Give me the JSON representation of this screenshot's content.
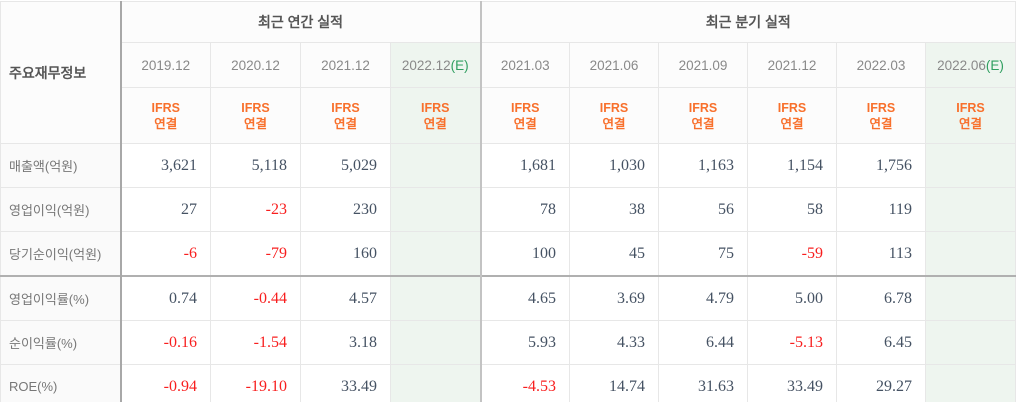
{
  "table": {
    "corner_label": "주요재무정보",
    "groups": [
      {
        "label": "최근 연간 실적",
        "span": 4
      },
      {
        "label": "최근 분기 실적",
        "span": 6
      }
    ],
    "columns": [
      {
        "period": "2019.12",
        "estimate": false,
        "standard_label": "IFRS",
        "scope_label": "연결"
      },
      {
        "period": "2020.12",
        "estimate": false,
        "standard_label": "IFRS",
        "scope_label": "연결"
      },
      {
        "period": "2021.12",
        "estimate": false,
        "standard_label": "IFRS",
        "scope_label": "연결"
      },
      {
        "period": "2022.12",
        "estimate": true,
        "estimate_suffix": "(E)",
        "standard_label": "IFRS",
        "scope_label": "연결"
      },
      {
        "period": "2021.03",
        "estimate": false,
        "standard_label": "IFRS",
        "scope_label": "연결"
      },
      {
        "period": "2021.06",
        "estimate": false,
        "standard_label": "IFRS",
        "scope_label": "연결"
      },
      {
        "period": "2021.09",
        "estimate": false,
        "standard_label": "IFRS",
        "scope_label": "연결"
      },
      {
        "period": "2021.12",
        "estimate": false,
        "standard_label": "IFRS",
        "scope_label": "연결"
      },
      {
        "period": "2022.03",
        "estimate": false,
        "standard_label": "IFRS",
        "scope_label": "연결"
      },
      {
        "period": "2022.06",
        "estimate": true,
        "estimate_suffix": "(E)",
        "standard_label": "IFRS",
        "scope_label": "연결"
      }
    ],
    "rows": [
      {
        "label": "매출액(억원)",
        "section_start": false,
        "values": [
          "3,621",
          "5,118",
          "5,029",
          "",
          "1,681",
          "1,030",
          "1,163",
          "1,154",
          "1,756",
          ""
        ]
      },
      {
        "label": "영업이익(억원)",
        "section_start": false,
        "values": [
          "27",
          "-23",
          "230",
          "",
          "78",
          "38",
          "56",
          "58",
          "119",
          ""
        ]
      },
      {
        "label": "당기순이익(억원)",
        "section_start": false,
        "values": [
          "-6",
          "-79",
          "160",
          "",
          "100",
          "45",
          "75",
          "-59",
          "113",
          ""
        ]
      },
      {
        "label": "영업이익률(%)",
        "section_start": true,
        "values": [
          "0.74",
          "-0.44",
          "4.57",
          "",
          "4.65",
          "3.69",
          "4.79",
          "5.00",
          "6.78",
          ""
        ]
      },
      {
        "label": "순이익률(%)",
        "section_start": false,
        "values": [
          "-0.16",
          "-1.54",
          "3.18",
          "",
          "5.93",
          "4.33",
          "6.44",
          "-5.13",
          "6.45",
          ""
        ]
      },
      {
        "label": "ROE(%)",
        "section_start": false,
        "values": [
          "-0.94",
          "-19.10",
          "33.49",
          "",
          "-4.53",
          "14.74",
          "31.63",
          "33.49",
          "29.27",
          ""
        ]
      }
    ]
  },
  "colors": {
    "accent_orange": "#f8702c",
    "estimate_green_text": "#2f9e5f",
    "estimate_green_bg": "#eef5ef",
    "negative_red": "#f81e1e",
    "number_text": "#455263"
  }
}
